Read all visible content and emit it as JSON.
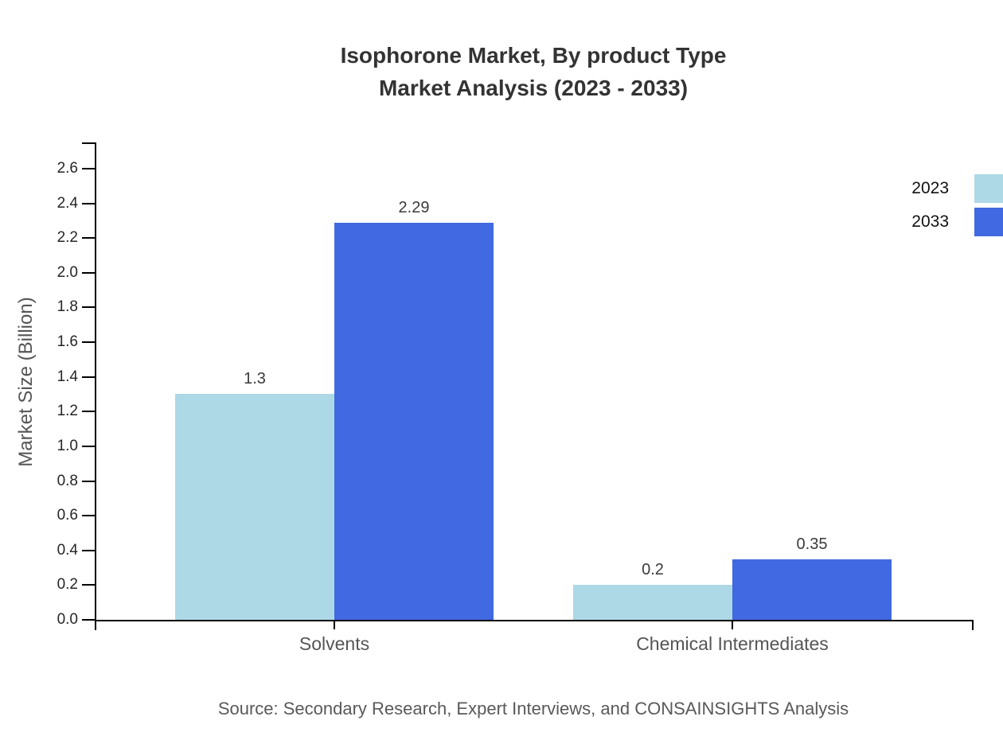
{
  "title": {
    "line1": "Isophorone Market, By product Type",
    "line2": "Market Analysis (2023 - 2033)"
  },
  "source": "Source: Secondary Research, Expert Interviews, and CONSAINSIGHTS Analysis",
  "legend": {
    "items": [
      {
        "label": "2023",
        "color": "#ADD8E6"
      },
      {
        "label": "2033",
        "color": "#4169E1"
      }
    ]
  },
  "chart_data": {
    "type": "bar",
    "title": "Isophorone Market, By product Type — Market Analysis (2023 - 2033)",
    "categories": [
      "Solvents",
      "Chemical Intermediates"
    ],
    "series": [
      {
        "name": "2023",
        "color": "#ADD8E6",
        "values": [
          1.3,
          0.2
        ],
        "value_labels": [
          "1.3",
          "0.2"
        ]
      },
      {
        "name": "2033",
        "color": "#4169E1",
        "values": [
          2.29,
          0.35
        ],
        "value_labels": [
          "2.29",
          "0.35"
        ]
      }
    ],
    "xlabel": "",
    "ylabel": "Market Size (Billion)",
    "ylim": [
      0,
      2.75
    ],
    "yticks": [
      "0.0",
      "0.2",
      "0.4",
      "0.6",
      "0.8",
      "1.0",
      "1.2",
      "1.4",
      "1.6",
      "1.8",
      "2.0",
      "2.2",
      "2.4",
      "2.6"
    ],
    "grid": false,
    "legend_position": "outside-right-top"
  }
}
